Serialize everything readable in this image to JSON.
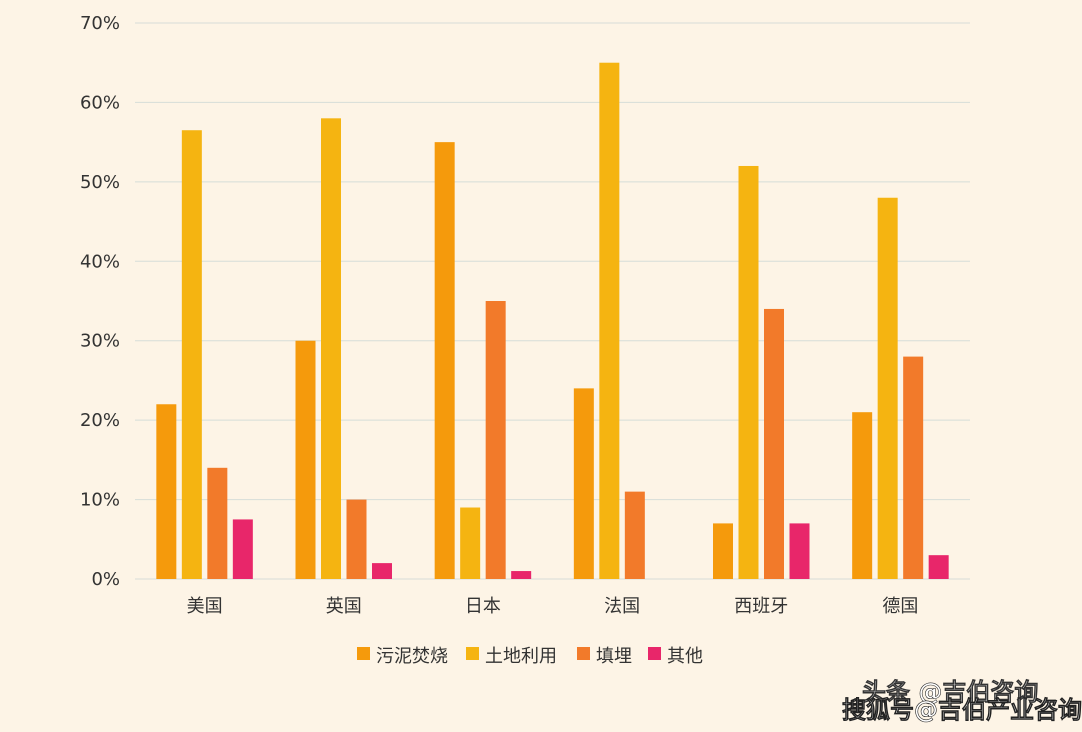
{
  "chart_data": {
    "type": "bar",
    "categories": [
      "美国",
      "英国",
      "日本",
      "法国",
      "西班牙",
      "德国"
    ],
    "series": [
      {
        "name": "污泥焚烧",
        "color": "#f59a0c",
        "values": [
          22,
          30,
          55,
          24,
          7,
          21
        ]
      },
      {
        "name": "土地利用",
        "color": "#f5b411",
        "values": [
          56.5,
          58,
          9,
          65,
          52,
          48
        ]
      },
      {
        "name": "填埋",
        "color": "#f27a2a",
        "values": [
          14,
          10,
          35,
          11,
          34,
          28
        ]
      },
      {
        "name": "其他",
        "color": "#e8266a",
        "values": [
          7.5,
          2,
          1,
          0,
          7,
          3
        ]
      }
    ],
    "ylim": [
      0,
      70
    ],
    "yticks": [
      "0%",
      "10%",
      "20%",
      "30%",
      "40%",
      "50%",
      "60%",
      "70%"
    ],
    "grid": true,
    "legend_position": "bottom"
  },
  "watermark": {
    "line1": "头条 @吉伯咨询",
    "line2": "搜狐号@吉伯产业咨询"
  },
  "colors": {
    "background": "#fdf4e6",
    "gridline": "#d6ddd8",
    "text": "#333333"
  }
}
